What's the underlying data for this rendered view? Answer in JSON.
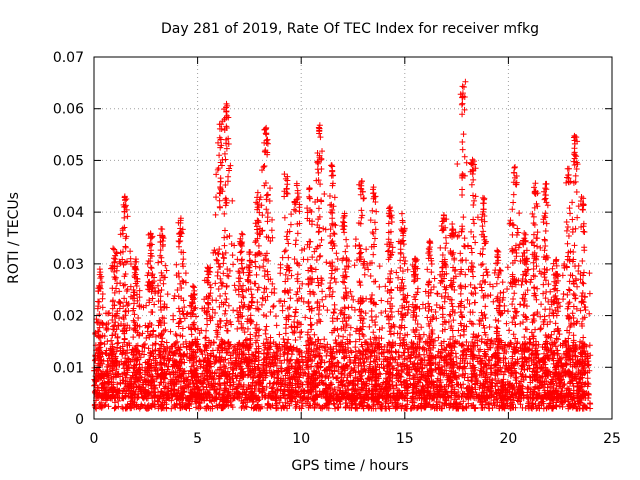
{
  "chart_data": {
    "type": "scatter",
    "title": "Day 281 of 2019, Rate Of TEC Index for receiver mfkg",
    "xlabel": "GPS time / hours",
    "ylabel": "ROTI / TECUs",
    "xlim": [
      0,
      25
    ],
    "ylim": [
      0,
      0.07
    ],
    "xticks": [
      0,
      5,
      10,
      15,
      20,
      25
    ],
    "xtick_labels": [
      "0",
      "5",
      "10",
      "15",
      "20",
      "25"
    ],
    "yticks": [
      0,
      0.01,
      0.02,
      0.03,
      0.04,
      0.05,
      0.06,
      0.07
    ],
    "ytick_labels": [
      "0",
      "0.01",
      "0.02",
      "0.03",
      "0.04",
      "0.05",
      "0.06",
      "0.07"
    ],
    "grid": true,
    "marker": "plus",
    "series_color": "#ff0000",
    "data_range": [
      0,
      23.95
    ],
    "baseline_range": [
      0.002,
      0.015
    ],
    "activity_peaks": [
      {
        "x": 0.3,
        "y": 0.029
      },
      {
        "x": 1.0,
        "y": 0.033
      },
      {
        "x": 1.5,
        "y": 0.044
      },
      {
        "x": 2.0,
        "y": 0.031
      },
      {
        "x": 2.7,
        "y": 0.036
      },
      {
        "x": 3.3,
        "y": 0.037
      },
      {
        "x": 4.2,
        "y": 0.039
      },
      {
        "x": 4.8,
        "y": 0.026
      },
      {
        "x": 5.5,
        "y": 0.03
      },
      {
        "x": 6.1,
        "y": 0.058
      },
      {
        "x": 6.4,
        "y": 0.061
      },
      {
        "x": 7.1,
        "y": 0.036
      },
      {
        "x": 7.5,
        "y": 0.033
      },
      {
        "x": 7.9,
        "y": 0.044
      },
      {
        "x": 8.3,
        "y": 0.057
      },
      {
        "x": 9.3,
        "y": 0.048
      },
      {
        "x": 9.8,
        "y": 0.046
      },
      {
        "x": 10.4,
        "y": 0.045
      },
      {
        "x": 10.9,
        "y": 0.059
      },
      {
        "x": 11.5,
        "y": 0.05
      },
      {
        "x": 12.1,
        "y": 0.04
      },
      {
        "x": 12.9,
        "y": 0.046
      },
      {
        "x": 13.5,
        "y": 0.045
      },
      {
        "x": 14.3,
        "y": 0.041
      },
      {
        "x": 14.9,
        "y": 0.04
      },
      {
        "x": 15.5,
        "y": 0.031
      },
      {
        "x": 16.2,
        "y": 0.035
      },
      {
        "x": 16.9,
        "y": 0.04
      },
      {
        "x": 17.3,
        "y": 0.039
      },
      {
        "x": 17.8,
        "y": 0.066
      },
      {
        "x": 18.3,
        "y": 0.051
      },
      {
        "x": 18.8,
        "y": 0.043
      },
      {
        "x": 19.5,
        "y": 0.033
      },
      {
        "x": 20.3,
        "y": 0.049
      },
      {
        "x": 20.8,
        "y": 0.036
      },
      {
        "x": 21.3,
        "y": 0.047
      },
      {
        "x": 21.8,
        "y": 0.046
      },
      {
        "x": 22.3,
        "y": 0.031
      },
      {
        "x": 22.9,
        "y": 0.049
      },
      {
        "x": 23.2,
        "y": 0.055
      },
      {
        "x": 23.6,
        "y": 0.043
      }
    ]
  }
}
